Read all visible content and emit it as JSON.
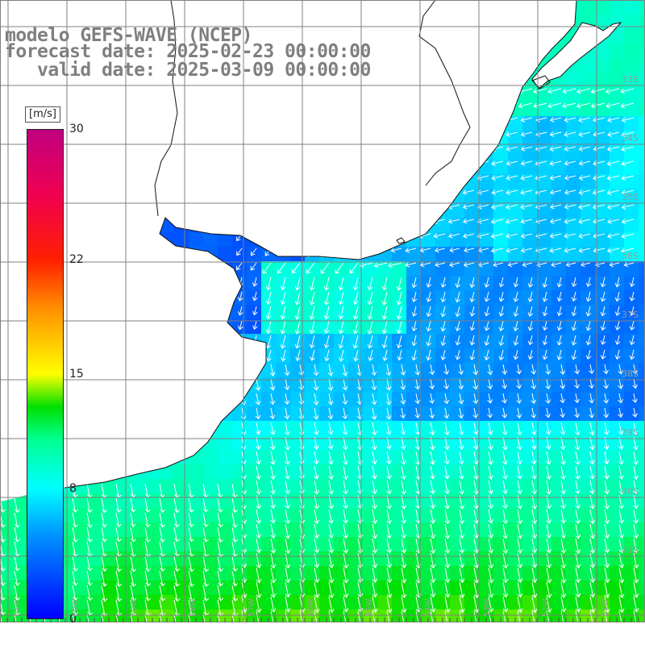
{
  "title": {
    "model": "modelo GEFS-WAVE (NCEP)",
    "forecast": "forecast date: 2025-02-23 00:00:00",
    "valid": "   valid date: 2025-03-09 00:00:00"
  },
  "colorbar": {
    "units": "[m/s]",
    "min": 0,
    "max": 30,
    "ticks": [
      "30",
      "22",
      "15",
      "8",
      "0"
    ],
    "tick_values": [
      30,
      22,
      15,
      8,
      0
    ],
    "stops": [
      {
        "v": 0,
        "color": "#0000ff"
      },
      {
        "v": 5,
        "color": "#0090ff"
      },
      {
        "v": 8,
        "color": "#00ffff"
      },
      {
        "v": 11,
        "color": "#00ff90"
      },
      {
        "v": 13,
        "color": "#00e000"
      },
      {
        "v": 15,
        "color": "#ffff00"
      },
      {
        "v": 19,
        "color": "#ff9000"
      },
      {
        "v": 22,
        "color": "#ff2000"
      },
      {
        "v": 26,
        "color": "#f00050"
      },
      {
        "v": 30,
        "color": "#c00080"
      }
    ]
  },
  "map": {
    "lon_range": [
      -61,
      -50
    ],
    "lat_range": [
      -41.5,
      -31.5
    ],
    "lat_labels": [
      "33S",
      "34S",
      "35S",
      "36S",
      "37S",
      "38S",
      "39S",
      "40S",
      "41S"
    ],
    "lon_labels": [
      "61W",
      "60W",
      "59W",
      "58W",
      "57W",
      "56W",
      "55W",
      "54W",
      "53W",
      "52W",
      "51W"
    ],
    "land_color": "#ffffff",
    "grid_color": "#808080",
    "arrow_color": "#ffffff"
  }
}
